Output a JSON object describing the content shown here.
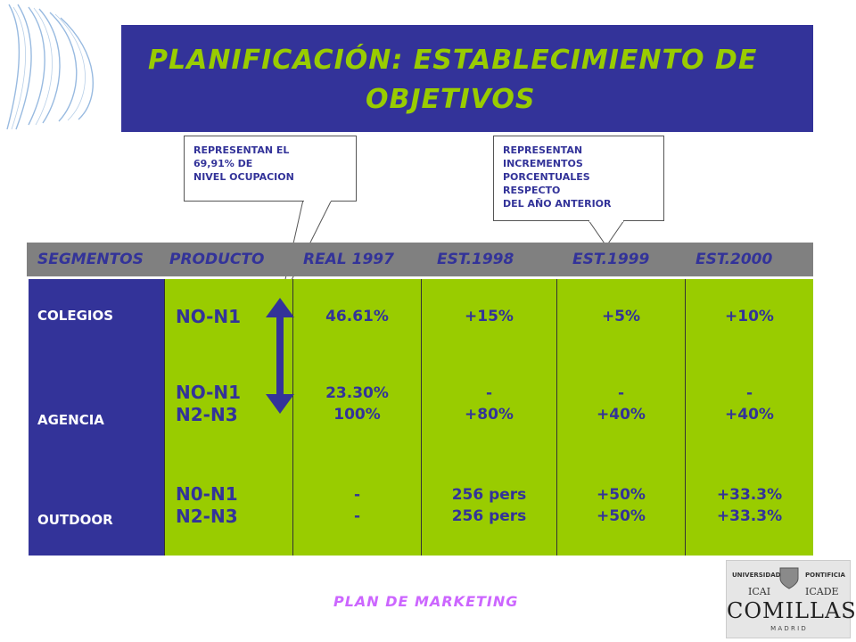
{
  "title": {
    "line1": "PLANIFICACIÓN: ESTABLECIMIENTO DE",
    "line2": "OBJETIVOS"
  },
  "callouts": {
    "left": "REPRESENTAN EL\n69,91% DE\nNIVEL OCUPACION",
    "right": "REPRESENTAN\nINCREMENTOS\nPORCENTUALES\nRESPECTO\nDEL AÑO ANTERIOR"
  },
  "headers": [
    "SEGMENTOS",
    "PRODUCTO",
    "REAL 1997",
    "EST.1998",
    "EST.1999",
    "EST.2000"
  ],
  "segments": [
    "COLEGIOS",
    "AGENCIA",
    "OUTDOOR"
  ],
  "products": [
    "NO-N1",
    "NO-N1\nN2-N3",
    "N0-N1\nN2-N3"
  ],
  "columns": [
    [
      "46.61%",
      "23.30%\n100%",
      "-\n-"
    ],
    [
      "+15%",
      "-\n+80%",
      "256 pers\n256 pers"
    ],
    [
      "+5%",
      "-\n+40%",
      "+50%\n+50%"
    ],
    [
      "+10%",
      "-\n+40%",
      "+33.3%\n+33.3%"
    ]
  ],
  "footer": "PLAN DE MARKETING",
  "logo": {
    "top_left": "UNIVERSIDAD",
    "top_right": "PONTIFICIA",
    "left": "ICAI",
    "right": "ICADE",
    "name": "COMILLAS",
    "city": "M A D R I D"
  },
  "colors": {
    "navy": "#333399",
    "green": "#99cc00",
    "gray": "#808080",
    "footer": "#cc66ff"
  }
}
